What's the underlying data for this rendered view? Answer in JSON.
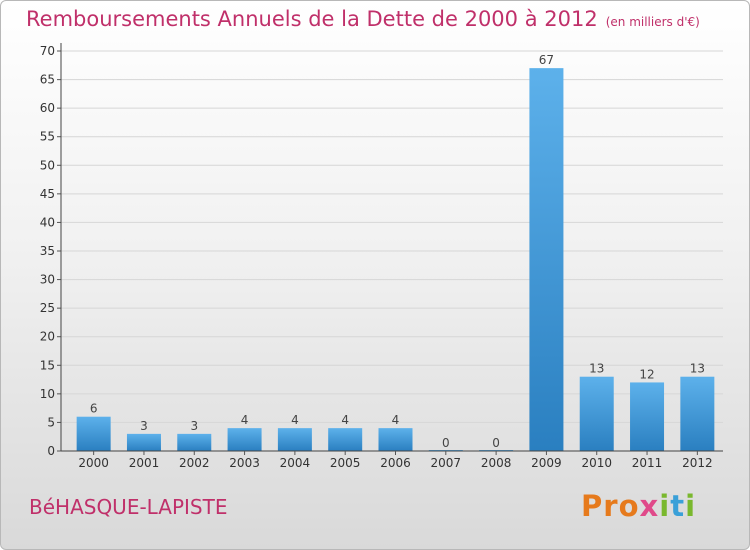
{
  "title": "Remboursements Annuels de la Dette de 2000 à 2012",
  "subtitle": "(en milliers d'€)",
  "footer_label": "BéHASQUE-LAPISTE",
  "logo": {
    "text": "Proxiti",
    "colors": [
      "#e67a1c",
      "#3aa0d8",
      "#e04a8a",
      "#7ab82e"
    ]
  },
  "colors": {
    "title": "#c0306a",
    "bar_top": "#5db1eb",
    "bar_bottom": "#2a7fc0"
  },
  "chart_data": {
    "type": "bar",
    "title": "Remboursements Annuels de la Dette de 2000 à 2012",
    "xlabel": "",
    "ylabel": "(en milliers d'€)",
    "categories": [
      "2000",
      "2001",
      "2002",
      "2003",
      "2004",
      "2005",
      "2006",
      "2007",
      "2008",
      "2009",
      "2010",
      "2011",
      "2012"
    ],
    "values": [
      6,
      3,
      3,
      4,
      4,
      4,
      4,
      0,
      0,
      67,
      13,
      12,
      13
    ],
    "ylim": [
      0,
      70
    ],
    "yticks": [
      0,
      5,
      10,
      15,
      20,
      25,
      30,
      35,
      40,
      45,
      50,
      55,
      60,
      65,
      70
    ],
    "grid": true
  }
}
